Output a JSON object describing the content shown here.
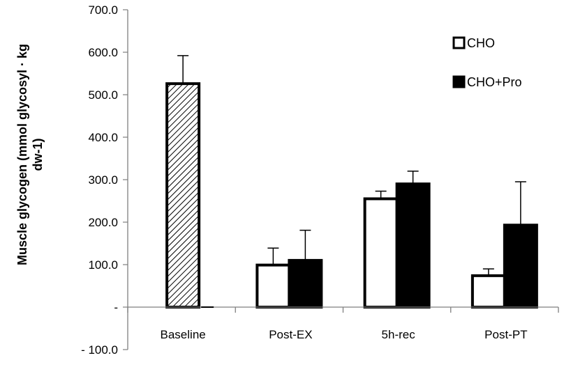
{
  "chart_data": {
    "type": "bar",
    "title": "",
    "xlabel": "",
    "ylabel_lines": [
      "Muscle glycogen (mmol glycosyl · kg",
      "dw-1)"
    ],
    "categories": [
      "Baseline",
      "Post-EX",
      "5h-rec",
      "Post-PT"
    ],
    "ylim": [
      -100,
      700
    ],
    "yticks": [
      -100,
      0,
      100,
      200,
      300,
      400,
      500,
      600,
      700
    ],
    "ytick_labels": [
      "- 100.0",
      "-",
      "100.0",
      "200.0",
      "300.0",
      "400.0",
      "500.0",
      "600.0",
      "700.0"
    ],
    "baseline": {
      "label": "Baseline",
      "value": 526,
      "error": 66,
      "pattern": "diagonal-hatch"
    },
    "series": [
      {
        "name": "CHO",
        "color": "#ffffff",
        "values": [
          null,
          99,
          255,
          74
        ],
        "errors": [
          null,
          40,
          18,
          16
        ]
      },
      {
        "name": "CHO+Pro",
        "color": "#000000",
        "values": [
          null,
          110,
          290,
          193
        ],
        "errors": [
          null,
          71,
          30,
          102
        ]
      }
    ],
    "legend_position": "top-right",
    "grid": false
  }
}
